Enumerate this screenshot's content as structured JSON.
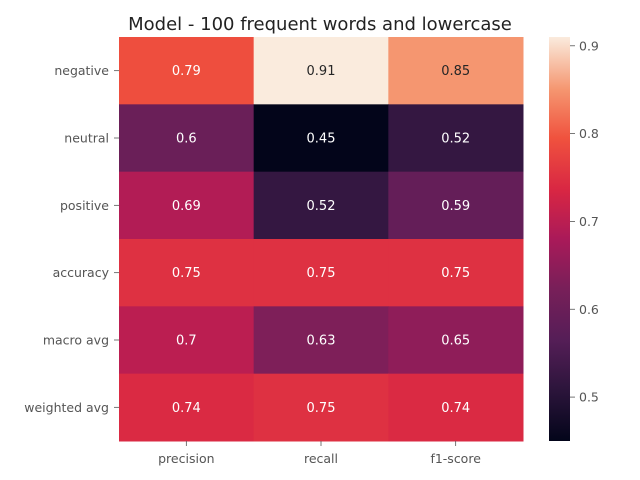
{
  "chart_data": {
    "type": "heatmap",
    "title": "Model - 100 frequent words and lowercase",
    "rows": [
      "negative",
      "neutral",
      "positive",
      "accuracy",
      "macro avg",
      "weighted avg"
    ],
    "columns": [
      "precision",
      "recall",
      "f1-score"
    ],
    "values": [
      [
        0.79,
        0.91,
        0.85
      ],
      [
        0.6,
        0.45,
        0.52
      ],
      [
        0.69,
        0.52,
        0.59
      ],
      [
        0.75,
        0.75,
        0.75
      ],
      [
        0.7,
        0.63,
        0.65
      ],
      [
        0.74,
        0.75,
        0.74
      ]
    ],
    "colorbar": {
      "vmin": 0.45,
      "vmax": 0.91,
      "ticks": [
        0.5,
        0.6,
        0.7,
        0.8,
        0.9
      ],
      "colormap": "rocket"
    },
    "xlabel": "",
    "ylabel": ""
  }
}
